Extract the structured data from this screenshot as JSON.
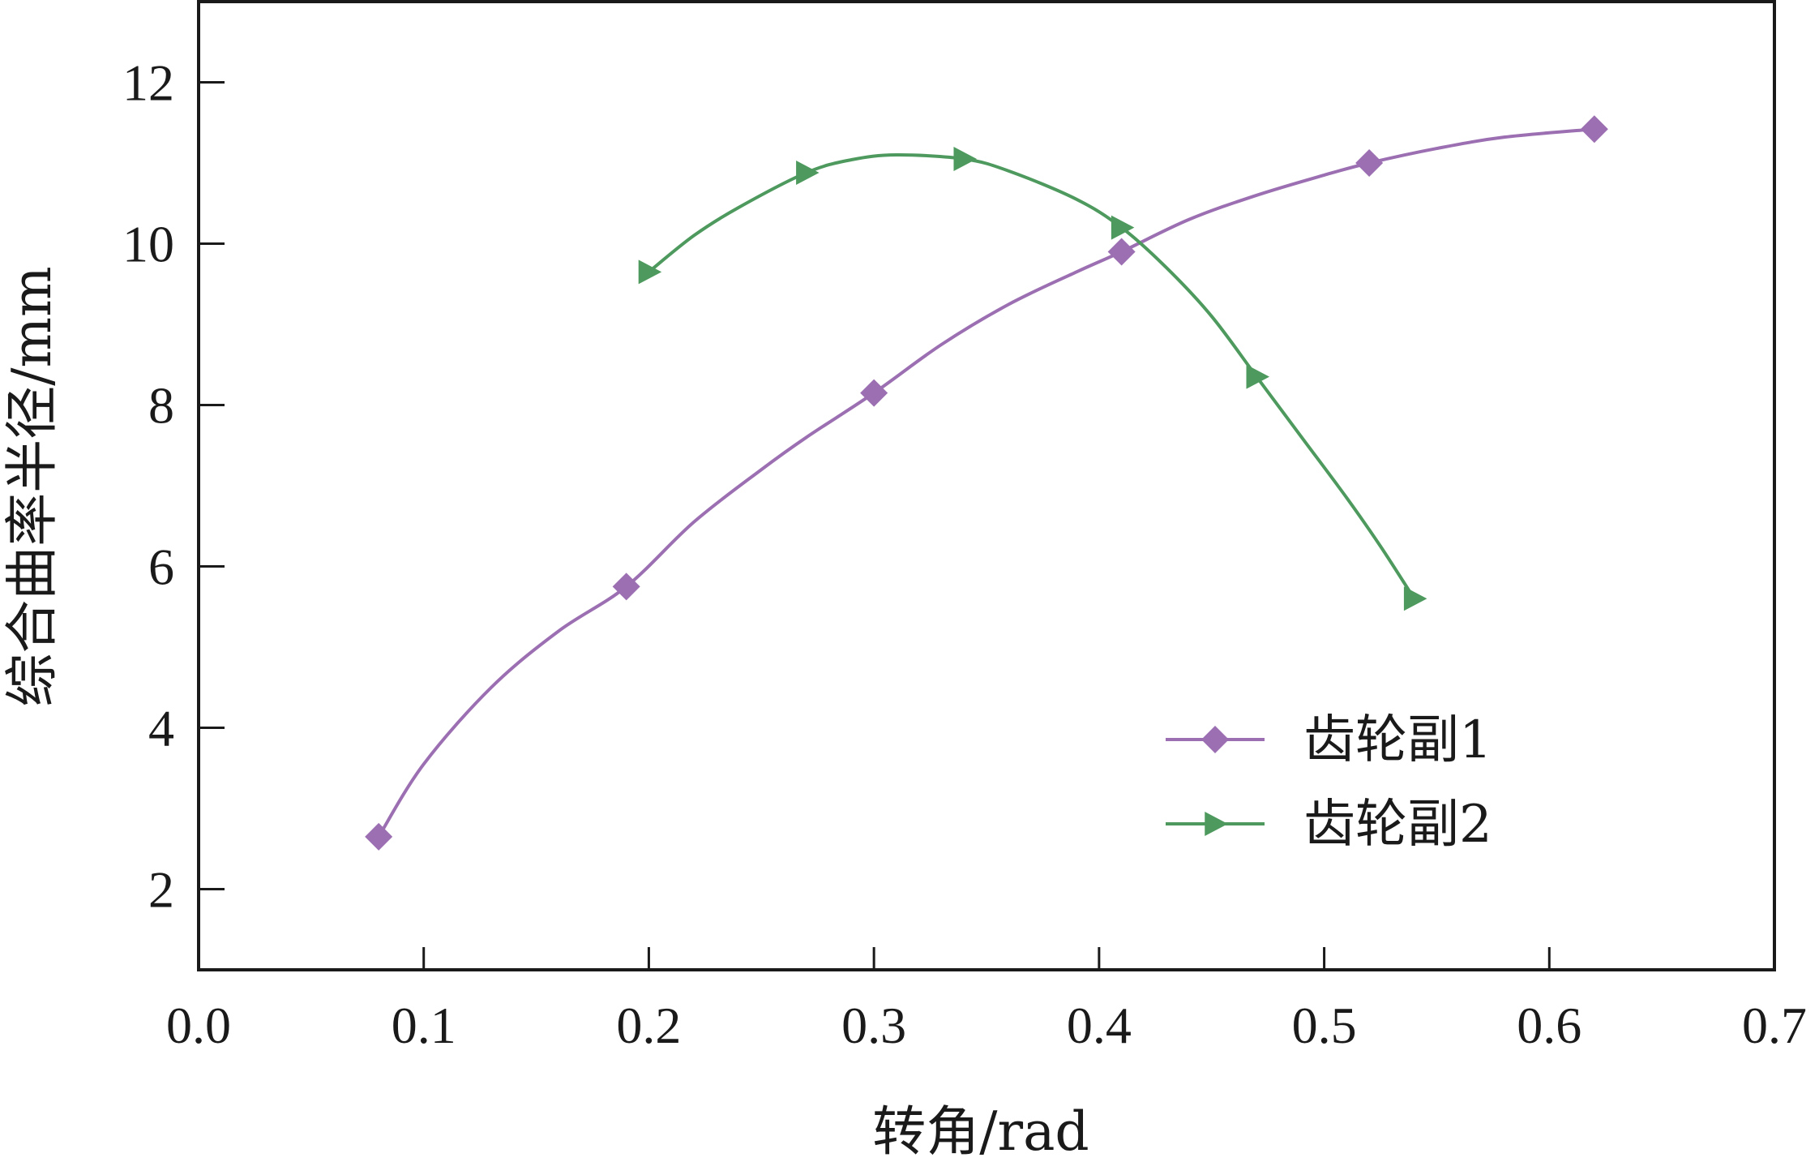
{
  "chart_data": {
    "type": "line",
    "title": "",
    "xlabel": "转角/rad",
    "ylabel": "综合曲率半径/mm",
    "xlim": [
      0.0,
      0.7
    ],
    "ylim": [
      1,
      13
    ],
    "xticks": [
      "0.0",
      "0.1",
      "0.2",
      "0.3",
      "0.4",
      "0.5",
      "0.6",
      "0.7"
    ],
    "xtick_values": [
      0.0,
      0.1,
      0.2,
      0.3,
      0.4,
      0.5,
      0.6,
      0.7
    ],
    "yticks": [
      "2",
      "4",
      "6",
      "8",
      "10",
      "12"
    ],
    "ytick_values": [
      2,
      4,
      6,
      8,
      10,
      12
    ],
    "grid": false,
    "legend_position": "bottom-right",
    "series": [
      {
        "name": "齿轮副1",
        "color": "#9b6fb1",
        "marker": "diamond",
        "markers": [
          {
            "x": 0.08,
            "y": 2.65
          },
          {
            "x": 0.19,
            "y": 5.75
          },
          {
            "x": 0.3,
            "y": 8.15
          },
          {
            "x": 0.41,
            "y": 9.9
          },
          {
            "x": 0.52,
            "y": 11.0
          },
          {
            "x": 0.62,
            "y": 11.42
          }
        ],
        "curve": [
          {
            "x": 0.08,
            "y": 2.65
          },
          {
            "x": 0.1,
            "y": 3.55
          },
          {
            "x": 0.13,
            "y": 4.5
          },
          {
            "x": 0.16,
            "y": 5.2
          },
          {
            "x": 0.19,
            "y": 5.75
          },
          {
            "x": 0.22,
            "y": 6.55
          },
          {
            "x": 0.25,
            "y": 7.2
          },
          {
            "x": 0.27,
            "y": 7.6
          },
          {
            "x": 0.3,
            "y": 8.15
          },
          {
            "x": 0.33,
            "y": 8.75
          },
          {
            "x": 0.36,
            "y": 9.25
          },
          {
            "x": 0.39,
            "y": 9.65
          },
          {
            "x": 0.41,
            "y": 9.9
          },
          {
            "x": 0.44,
            "y": 10.3
          },
          {
            "x": 0.47,
            "y": 10.6
          },
          {
            "x": 0.5,
            "y": 10.85
          },
          {
            "x": 0.52,
            "y": 11.0
          },
          {
            "x": 0.55,
            "y": 11.18
          },
          {
            "x": 0.58,
            "y": 11.32
          },
          {
            "x": 0.62,
            "y": 11.42
          }
        ]
      },
      {
        "name": "齿轮副2",
        "color": "#4e9a5e",
        "marker": "triangle-right",
        "markers": [
          {
            "x": 0.2,
            "y": 9.65
          },
          {
            "x": 0.27,
            "y": 10.88
          },
          {
            "x": 0.34,
            "y": 11.05
          },
          {
            "x": 0.41,
            "y": 10.2
          },
          {
            "x": 0.47,
            "y": 8.35
          },
          {
            "x": 0.54,
            "y": 5.6
          }
        ],
        "curve": [
          {
            "x": 0.2,
            "y": 9.65
          },
          {
            "x": 0.22,
            "y": 10.1
          },
          {
            "x": 0.24,
            "y": 10.45
          },
          {
            "x": 0.27,
            "y": 10.88
          },
          {
            "x": 0.29,
            "y": 11.04
          },
          {
            "x": 0.31,
            "y": 11.1
          },
          {
            "x": 0.34,
            "y": 11.05
          },
          {
            "x": 0.36,
            "y": 10.9
          },
          {
            "x": 0.39,
            "y": 10.55
          },
          {
            "x": 0.41,
            "y": 10.2
          },
          {
            "x": 0.43,
            "y": 9.7
          },
          {
            "x": 0.45,
            "y": 9.1
          },
          {
            "x": 0.47,
            "y": 8.35
          },
          {
            "x": 0.49,
            "y": 7.6
          },
          {
            "x": 0.51,
            "y": 6.85
          },
          {
            "x": 0.525,
            "y": 6.25
          },
          {
            "x": 0.54,
            "y": 5.6
          }
        ]
      }
    ]
  }
}
